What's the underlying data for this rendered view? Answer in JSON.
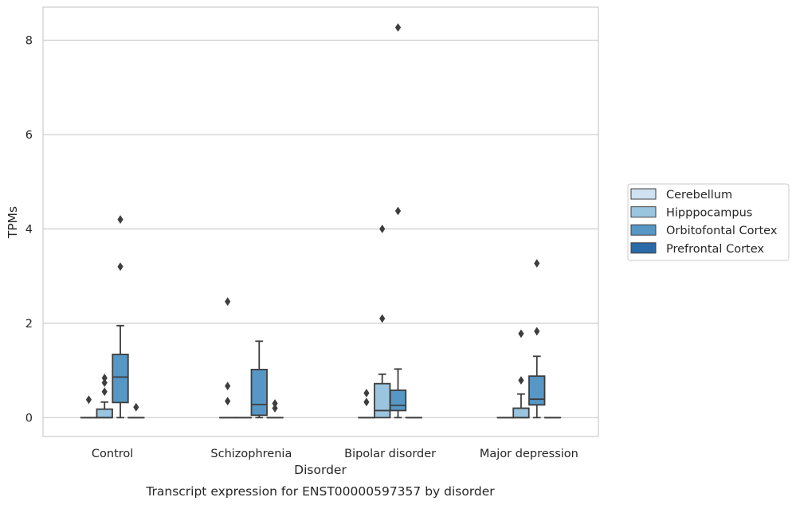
{
  "chart_data": {
    "type": "box",
    "title": "Transcript expression for ENST00000597357 by disorder",
    "xlabel": "Disorder",
    "ylabel": "TPMs",
    "ylim": [
      -0.4,
      8.7
    ],
    "yticks": [
      0,
      2,
      4,
      6,
      8
    ],
    "grid": "horizontal",
    "legend_position": "center-right",
    "categories": [
      "Control",
      "Schizophrenia",
      "Bipolar disorder",
      "Major depression"
    ],
    "series": [
      {
        "name": "Cerebellum",
        "color": "#d0e2f2",
        "boxes": [
          {
            "q1": 0,
            "median": 0,
            "q3": 0,
            "whisker_low": 0,
            "whisker_high": 0,
            "outliers": [
              0.38
            ]
          },
          {
            "q1": 0,
            "median": 0,
            "q3": 0,
            "whisker_low": 0,
            "whisker_high": 0,
            "outliers": [
              2.46,
              0.67,
              0.35
            ]
          },
          {
            "q1": 0,
            "median": 0,
            "q3": 0,
            "whisker_low": 0,
            "whisker_high": 0,
            "outliers": [
              0.52,
              0.33
            ]
          },
          {
            "q1": 0,
            "median": 0,
            "q3": 0,
            "whisker_low": 0,
            "whisker_high": 0,
            "outliers": []
          }
        ]
      },
      {
        "name": "Hipppocampus",
        "color": "#9ac5de",
        "boxes": [
          {
            "q1": 0,
            "median": 0,
            "q3": 0.18,
            "whisker_low": 0,
            "whisker_high": 0.33,
            "outliers": [
              0.84,
              0.74,
              0.55
            ]
          },
          {
            "q1": 0,
            "median": 0,
            "q3": 0,
            "whisker_low": 0,
            "whisker_high": 0,
            "outliers": []
          },
          {
            "q1": 0,
            "median": 0.15,
            "q3": 0.72,
            "whisker_low": 0,
            "whisker_high": 0.92,
            "outliers": [
              4.0,
              2.1
            ]
          },
          {
            "q1": 0,
            "median": 0,
            "q3": 0.2,
            "whisker_low": 0,
            "whisker_high": 0.5,
            "outliers": [
              1.78,
              0.79
            ]
          }
        ]
      },
      {
        "name": "Orbitofontal Cortex",
        "color": "#5697c5",
        "boxes": [
          {
            "q1": 0.32,
            "median": 0.86,
            "q3": 1.34,
            "whisker_low": 0,
            "whisker_high": 1.95,
            "outliers": [
              4.2,
              3.2
            ]
          },
          {
            "q1": 0.05,
            "median": 0.28,
            "q3": 1.02,
            "whisker_low": 0,
            "whisker_high": 1.62,
            "outliers": []
          },
          {
            "q1": 0.15,
            "median": 0.26,
            "q3": 0.58,
            "whisker_low": 0,
            "whisker_high": 1.03,
            "outliers": [
              8.27,
              4.38
            ]
          },
          {
            "q1": 0.27,
            "median": 0.39,
            "q3": 0.88,
            "whisker_low": 0,
            "whisker_high": 1.3,
            "outliers": [
              3.27,
              1.83
            ]
          }
        ]
      },
      {
        "name": "Prefrontal Cortex",
        "color": "#2b6aa8",
        "boxes": [
          {
            "q1": 0,
            "median": 0,
            "q3": 0,
            "whisker_low": 0,
            "whisker_high": 0,
            "outliers": [
              0.22
            ]
          },
          {
            "q1": 0,
            "median": 0,
            "q3": 0,
            "whisker_low": 0,
            "whisker_high": 0,
            "outliers": [
              0.3,
              0.2
            ]
          },
          {
            "q1": 0,
            "median": 0,
            "q3": 0,
            "whisker_low": 0,
            "whisker_high": 0,
            "outliers": []
          },
          {
            "q1": 0,
            "median": 0,
            "q3": 0,
            "whisker_low": 0,
            "whisker_high": 0,
            "outliers": []
          }
        ]
      }
    ]
  }
}
